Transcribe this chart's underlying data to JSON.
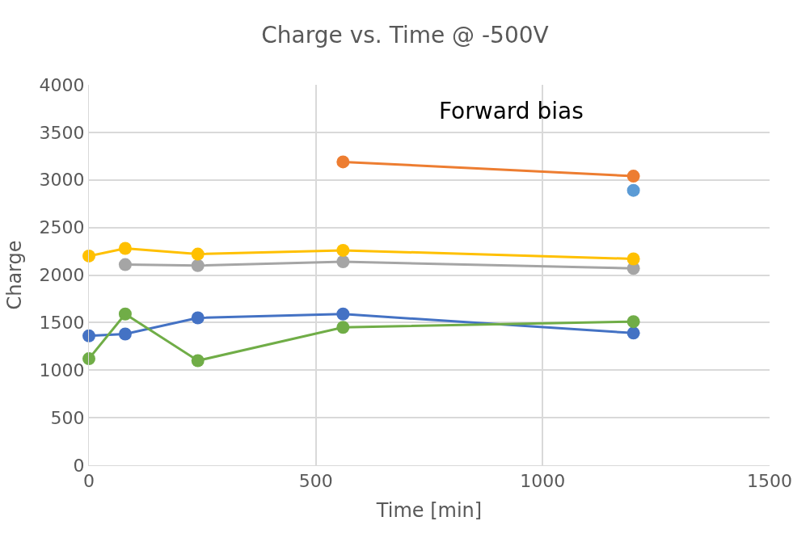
{
  "chart_data": {
    "type": "line",
    "title": "Charge vs. Time @ -500V",
    "xlabel": "Time [min]",
    "ylabel": "Charge",
    "annotations": [
      "Forward bias"
    ],
    "xlim": [
      0,
      1500
    ],
    "xticks": [
      0,
      500,
      1000,
      1500
    ],
    "ylim": [
      0,
      4000
    ],
    "yticks": [
      0,
      500,
      1000,
      1500,
      2000,
      2500,
      3000,
      3500,
      4000
    ],
    "grid": true,
    "marker": "circle",
    "line_style": "solid",
    "series": [
      {
        "color": "#4472c4",
        "x": [
          0,
          80,
          240,
          560,
          1200
        ],
        "values": [
          1360,
          1380,
          1550,
          1590,
          1390
        ]
      },
      {
        "color": "#ed7d31",
        "x": [
          560,
          1200
        ],
        "values": [
          3190,
          3040
        ]
      },
      {
        "color": "#a5a5a5",
        "x": [
          80,
          240,
          560,
          1200
        ],
        "values": [
          2110,
          2100,
          2140,
          2070
        ]
      },
      {
        "color": "#ffc000",
        "x": [
          0,
          80,
          240,
          560,
          1200
        ],
        "values": [
          2200,
          2280,
          2220,
          2260,
          2170
        ]
      },
      {
        "color": "#5b9bd5",
        "type": "scatter",
        "x": [
          1200
        ],
        "values": [
          2890
        ]
      },
      {
        "color": "#70ad47",
        "x": [
          0,
          80,
          240,
          560,
          1200
        ],
        "values": [
          1120,
          1590,
          1100,
          1450,
          1510
        ]
      }
    ]
  }
}
